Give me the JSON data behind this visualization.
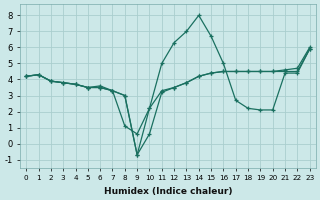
{
  "xlabel": "Humidex (Indice chaleur)",
  "xlim": [
    -0.5,
    23.5
  ],
  "ylim": [
    -1.5,
    8.7
  ],
  "xticks": [
    0,
    1,
    2,
    3,
    4,
    5,
    6,
    7,
    8,
    9,
    10,
    11,
    12,
    13,
    14,
    15,
    16,
    17,
    18,
    19,
    20,
    21,
    22,
    23
  ],
  "yticks": [
    -1,
    0,
    1,
    2,
    3,
    4,
    5,
    6,
    7,
    8
  ],
  "background_color": "#cce8e8",
  "grid_color": "#aacece",
  "line_color": "#1a7060",
  "line1_x": [
    0,
    1,
    2,
    3,
    4,
    5,
    6,
    7,
    8,
    9,
    10,
    11,
    12,
    13,
    14,
    15,
    16,
    17,
    18,
    19,
    20,
    21,
    22,
    23
  ],
  "line1_y": [
    4.2,
    4.3,
    3.9,
    3.8,
    3.7,
    3.5,
    3.5,
    3.3,
    3.0,
    -0.7,
    2.2,
    5.0,
    6.3,
    7.0,
    8.0,
    6.7,
    5.0,
    2.7,
    2.2,
    2.1,
    2.1,
    4.4,
    4.4,
    5.9
  ],
  "line2_x": [
    0,
    1,
    2,
    3,
    4,
    5,
    6,
    7,
    8,
    9,
    10,
    11,
    12,
    13,
    14,
    15,
    16,
    17,
    18,
    19,
    20,
    21,
    22,
    23
  ],
  "line2_y": [
    4.2,
    4.3,
    3.9,
    3.8,
    3.7,
    3.5,
    3.5,
    3.3,
    1.1,
    0.6,
    2.2,
    3.3,
    3.5,
    3.8,
    4.2,
    4.4,
    4.5,
    4.5,
    4.5,
    4.5,
    4.5,
    4.6,
    4.7,
    6.0
  ],
  "line3_x": [
    0,
    1,
    2,
    3,
    4,
    5,
    6,
    7,
    8,
    9,
    10,
    11,
    12,
    13,
    14,
    15,
    16,
    17,
    18,
    19,
    20,
    21,
    22,
    23
  ],
  "line3_y": [
    4.2,
    4.3,
    3.9,
    3.8,
    3.7,
    3.5,
    3.6,
    3.3,
    3.0,
    -0.7,
    0.6,
    3.2,
    3.5,
    3.8,
    4.2,
    4.4,
    4.5,
    4.5,
    4.5,
    4.5,
    4.5,
    4.5,
    4.5,
    5.9
  ]
}
